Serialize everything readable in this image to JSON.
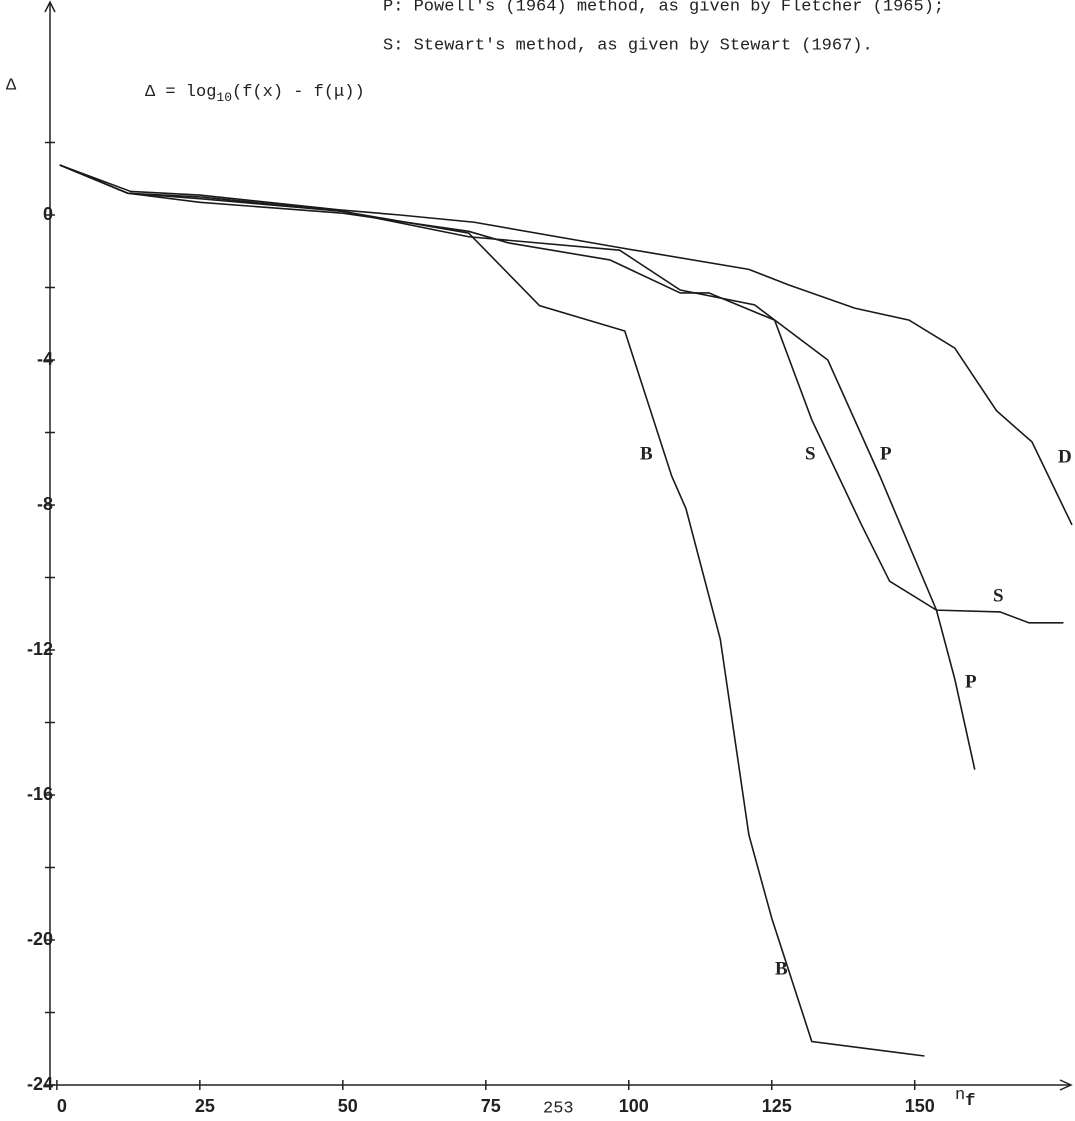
{
  "chart_data": {
    "type": "line",
    "notes": [
      "P: Powell's (1964) method, as given by Fletcher (1965);",
      "S: Stewart's method, as given by Stewart (1967)."
    ],
    "y_label": "Δ",
    "formula": {
      "lhs": "Δ = log",
      "sub": "10",
      "rhs": "(f(x) - f(μ))"
    },
    "x_label": {
      "main": "n",
      "sub": "f"
    },
    "page_number": "253",
    "xlim": [
      -1.2,
      176.8
    ],
    "ylim": [
      -24,
      5.6
    ],
    "xticks": [
      0,
      25,
      50,
      75,
      100,
      125,
      150
    ],
    "yticks": [
      0,
      -4,
      -8,
      -12,
      -16,
      -20,
      -24
    ],
    "yminor_ticks": [
      2,
      -2,
      -6,
      -10,
      -14,
      -18,
      -22
    ],
    "grid": false,
    "series": [
      {
        "name": "B",
        "color": "#1a1a1a",
        "x": [
          0.5,
          12.4,
          25,
          50,
          72,
          84.4,
          99.3,
          107.5,
          110,
          116,
          121,
          125,
          132,
          151.7
        ],
        "values": [
          1.38,
          0.6,
          0.5,
          0.1,
          -0.5,
          -2.5,
          -3.2,
          -7.2,
          -8.1,
          -11.7,
          -17.1,
          -19.4,
          -22.8,
          -23.2
        ]
      },
      {
        "name": "S",
        "color": "#1a1a1a",
        "x": [
          0.5,
          12.4,
          25,
          50,
          72,
          79,
          96.7,
          109,
          114,
          125.5,
          132,
          140.7,
          145.6,
          153.8,
          164.9,
          170,
          176
        ],
        "values": [
          1.38,
          0.6,
          0.35,
          0.05,
          -0.45,
          -0.77,
          -1.24,
          -2.15,
          -2.15,
          -2.9,
          -5.65,
          -8.55,
          -10.1,
          -10.9,
          -10.95,
          -11.25,
          -11.25
        ]
      },
      {
        "name": "P",
        "color": "#1a1a1a",
        "x": [
          0.5,
          12.4,
          25,
          50,
          72,
          98.4,
          109,
          122,
          134.8,
          143.9,
          153.8,
          157,
          160.5
        ],
        "values": [
          1.38,
          0.6,
          0.45,
          0.1,
          -0.6,
          -0.97,
          -2.07,
          -2.48,
          -4.0,
          -7.2,
          -10.9,
          -12.8,
          -15.3
        ]
      },
      {
        "name": "D",
        "color": "#1a1a1a",
        "x": [
          0.5,
          12.9,
          25,
          49.5,
          60,
          73,
          98.4,
          121,
          128,
          139.5,
          149,
          157,
          164.3,
          170.5,
          177.5
        ],
        "values": [
          1.38,
          0.65,
          0.55,
          0.14,
          0,
          -0.2,
          -0.9,
          -1.5,
          -1.93,
          -2.57,
          -2.9,
          -3.67,
          -5.4,
          -6.26,
          -8.55
        ]
      }
    ]
  }
}
